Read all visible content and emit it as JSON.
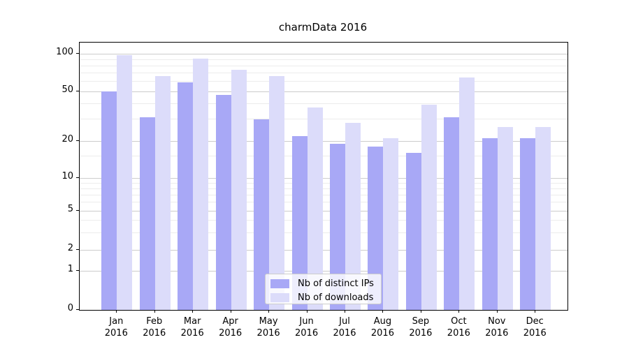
{
  "chart_data": {
    "type": "bar",
    "title": "charmData 2016",
    "categories": [
      "Jan",
      "Feb",
      "Mar",
      "Apr",
      "May",
      "Jun",
      "Jul",
      "Aug",
      "Sep",
      "Oct",
      "Nov",
      "Dec"
    ],
    "category_year": "2016",
    "series": [
      {
        "name": "Nb of distinct IPs",
        "color": "#a8a8f6",
        "values": [
          50,
          31,
          59,
          47,
          30,
          22,
          19,
          18,
          16,
          31,
          21,
          21
        ]
      },
      {
        "name": "Nb of downloads",
        "color": "#dcdcfa",
        "values": [
          97,
          66,
          91,
          74,
          66,
          37,
          28,
          21,
          39,
          65,
          26,
          26
        ]
      }
    ],
    "yscale": "symlog",
    "ylim": [
      0,
      110
    ],
    "ytick_values": [
      0,
      1,
      2,
      5,
      10,
      20,
      50,
      100
    ],
    "ytick_labels": [
      "0",
      "1",
      "2",
      "5",
      "10",
      "20",
      "50",
      "100"
    ],
    "minor_gridline_values": [
      3,
      4,
      6,
      7,
      8,
      9,
      15,
      30,
      40,
      60,
      70,
      80,
      90
    ],
    "grid": true,
    "legend_position": "lower center",
    "xlabel": "",
    "ylabel": ""
  },
  "colors": {
    "background": "#ffffff",
    "axis": "#000000",
    "major_grid": "#cccccc",
    "minor_grid": "#ececec",
    "legend_border": "#cccccc",
    "text": "#000000"
  }
}
